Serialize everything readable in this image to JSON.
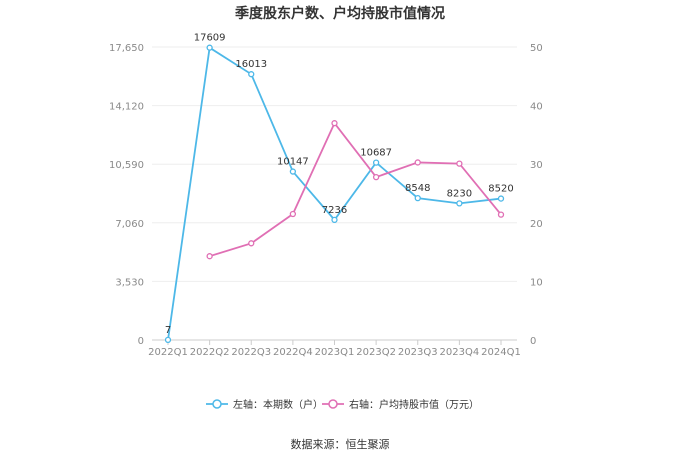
{
  "title": "季度股东户数、户均持股市值情况",
  "source": "数据来源：恒生聚源",
  "chart_data": {
    "type": "line",
    "categories": [
      "2022Q1",
      "2022Q2",
      "2022Q3",
      "2022Q4",
      "2023Q1",
      "2023Q2",
      "2023Q3",
      "2023Q4",
      "2024Q1"
    ],
    "y_left": {
      "ylim": [
        0,
        17650
      ],
      "ticks": [
        0,
        3530,
        7060,
        10590,
        14120,
        17650
      ],
      "tick_labels": [
        "0",
        "3,530",
        "7,060",
        "10,590",
        "14,120",
        "17,650"
      ]
    },
    "y_right": {
      "ylim": [
        0,
        50
      ],
      "ticks": [
        0,
        10,
        20,
        30,
        40,
        50
      ],
      "tick_labels": [
        "0",
        "10",
        "20",
        "30",
        "40",
        "50"
      ]
    },
    "series": [
      {
        "name": "左轴：本期数（户）",
        "axis": "left",
        "color": "#4db8e8",
        "values": [
          7,
          17609,
          16013,
          10147,
          7236,
          10687,
          8548,
          8230,
          8520
        ],
        "labels": [
          "7",
          "17609",
          "16013",
          "10147",
          "7236",
          "10687",
          "8548",
          "8230",
          "8520"
        ]
      },
      {
        "name": "右轴：户均持股市值（万元）",
        "axis": "right",
        "color": "#e06fb4",
        "values": [
          null,
          14.3,
          16.5,
          21.5,
          37.0,
          27.8,
          30.3,
          30.1,
          21.4
        ]
      }
    ],
    "grid": true,
    "legend_position": "bottom"
  }
}
